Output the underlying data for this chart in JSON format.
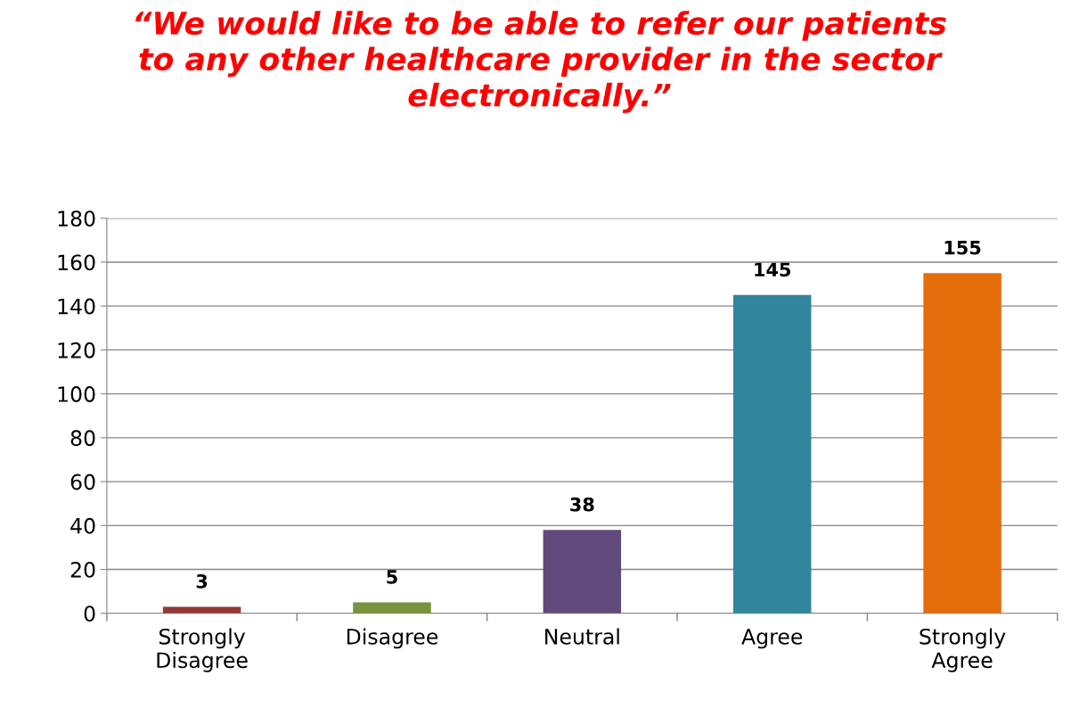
{
  "chart_data": {
    "type": "bar",
    "title": "“We would like to be able to refer our patients\nto any other healthcare provider in the sector\nelectronically.”",
    "categories": [
      "Strongly\nDisagree",
      "Disagree",
      "Neutral",
      "Agree",
      "Strongly\nAgree"
    ],
    "values": [
      3,
      5,
      38,
      145,
      155
    ],
    "colors": [
      "#953735",
      "#77933c",
      "#604a7b",
      "#31859c",
      "#e46c0a"
    ],
    "ylim": [
      0,
      180
    ],
    "yticks": [
      0,
      20,
      40,
      60,
      80,
      100,
      120,
      140,
      160,
      180
    ],
    "grid": "y",
    "data_labels": true,
    "legend": false
  }
}
